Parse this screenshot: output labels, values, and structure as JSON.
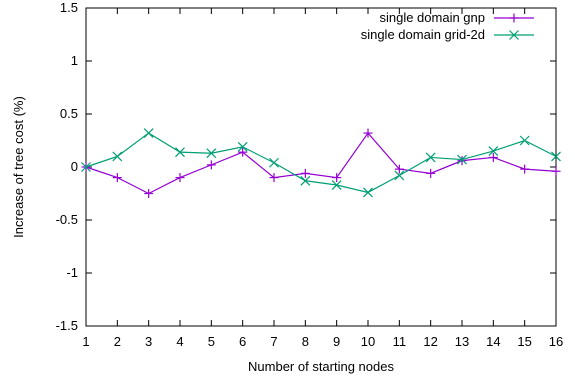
{
  "chart_data": {
    "type": "line",
    "title": "",
    "xlabel": "Number of starting nodes",
    "ylabel": "Increase of tree cost (%)",
    "x": [
      1,
      2,
      3,
      4,
      5,
      6,
      7,
      8,
      9,
      10,
      11,
      12,
      13,
      14,
      15,
      16
    ],
    "xlim": [
      1,
      16
    ],
    "ylim": [
      -1.5,
      1.5
    ],
    "xticks": [
      "1",
      "2",
      "3",
      "4",
      "5",
      "6",
      "7",
      "8",
      "9",
      "10",
      "11",
      "12",
      "13",
      "14",
      "15",
      "16"
    ],
    "yticks": [
      "-1.5",
      "-1",
      "-0.5",
      "0",
      "0.5",
      "1",
      "1.5"
    ],
    "ytick_values": [
      -1.5,
      -1,
      -0.5,
      0,
      0.5,
      1,
      1.5
    ],
    "grid": false,
    "legend_position": "top-right",
    "series": [
      {
        "name": "single domain gnp",
        "color": "#9400d3",
        "marker": "plus",
        "values": [
          0.0,
          -0.1,
          -0.25,
          -0.1,
          0.02,
          0.14,
          -0.1,
          -0.06,
          -0.1,
          0.32,
          -0.02,
          -0.06,
          0.06,
          0.09,
          -0.02,
          -0.04
        ]
      },
      {
        "name": "single domain grid-2d",
        "color": "#009e73",
        "marker": "cross",
        "values": [
          0.0,
          0.1,
          0.32,
          0.14,
          0.13,
          0.19,
          0.04,
          -0.13,
          -0.17,
          -0.24,
          -0.08,
          0.09,
          0.07,
          0.15,
          0.25,
          0.1
        ]
      }
    ]
  }
}
